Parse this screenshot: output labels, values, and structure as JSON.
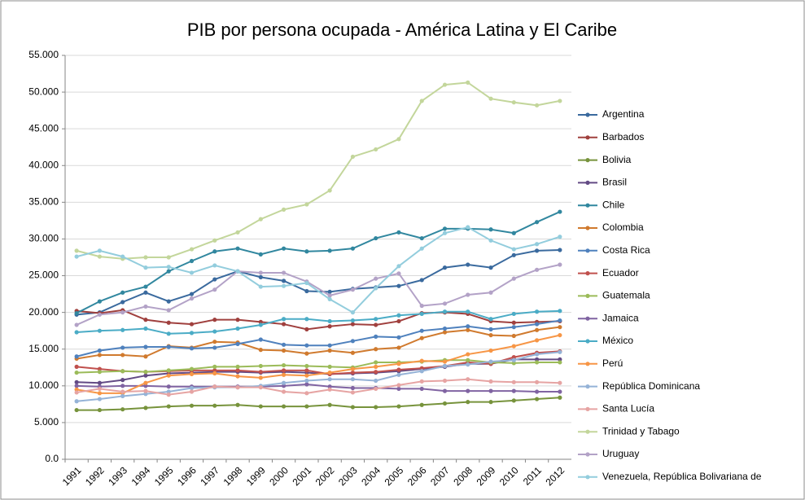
{
  "chart_data": {
    "type": "line",
    "title": "PIB por persona ocupada - América Latina y El Caribe",
    "categories": [
      "1991",
      "1992",
      "1993",
      "1994",
      "1995",
      "1996",
      "1997",
      "1998",
      "1999",
      "2000",
      "2001",
      "2002",
      "2003",
      "2004",
      "2005",
      "2006",
      "2007",
      "2008",
      "2009",
      "2010",
      "2011",
      "2012"
    ],
    "ylim": [
      0,
      55000
    ],
    "yticks": [
      {
        "value": 0,
        "label": "0.0"
      },
      {
        "value": 5000,
        "label": "5.000"
      },
      {
        "value": 10000,
        "label": "10.000"
      },
      {
        "value": 15000,
        "label": "15.000"
      },
      {
        "value": 20000,
        "label": "20.000"
      },
      {
        "value": 25000,
        "label": "25.000"
      },
      {
        "value": 30000,
        "label": "30.000"
      },
      {
        "value": 35000,
        "label": "35.000"
      },
      {
        "value": 40000,
        "label": "40.000"
      },
      {
        "value": 45000,
        "label": "45.000"
      },
      {
        "value": 50000,
        "label": "50.000"
      },
      {
        "value": 55000,
        "label": "55.000"
      }
    ],
    "grid": true,
    "legend": "right",
    "series": [
      {
        "name": "Argentina",
        "color": "#3A6A9E",
        "values": [
          19700,
          20000,
          21400,
          22700,
          21500,
          22500,
          24500,
          25600,
          24800,
          24300,
          22900,
          22800,
          23200,
          23400,
          23600,
          24400,
          26100,
          26500,
          26100,
          27800,
          28400,
          28500
        ]
      },
      {
        "name": "Barbados",
        "color": "#A0403E",
        "values": [
          20200,
          19900,
          20300,
          19000,
          18600,
          18400,
          19000,
          19000,
          18700,
          18400,
          17700,
          18100,
          18400,
          18300,
          18800,
          19900,
          20000,
          19800,
          18800,
          18600,
          18700,
          18800
        ]
      },
      {
        "name": "Bolivia",
        "color": "#77933C",
        "values": [
          6700,
          6700,
          6800,
          7000,
          7200,
          7300,
          7300,
          7400,
          7200,
          7200,
          7200,
          7400,
          7100,
          7100,
          7200,
          7400,
          7600,
          7800,
          7800,
          8000,
          8200,
          8400
        ]
      },
      {
        "name": "Brasil",
        "color": "#634B85",
        "values": [
          10500,
          10400,
          10800,
          11400,
          11700,
          11800,
          11900,
          11900,
          11800,
          11900,
          11800,
          11600,
          11700,
          11800,
          12000,
          12300,
          12600,
          13000,
          13000,
          13600,
          13600,
          13600
        ]
      },
      {
        "name": "Chile",
        "color": "#31879F",
        "values": [
          19900,
          21500,
          22700,
          23500,
          25600,
          27000,
          28300,
          28700,
          27900,
          28700,
          28300,
          28400,
          28700,
          30100,
          30900,
          30100,
          31400,
          31400,
          31300,
          30800,
          32300,
          33700
        ]
      },
      {
        "name": "Colombia",
        "color": "#D07A2E",
        "values": [
          13700,
          14200,
          14200,
          14000,
          15400,
          15200,
          16000,
          15900,
          14900,
          14800,
          14400,
          14800,
          14500,
          15000,
          15200,
          16500,
          17300,
          17600,
          16900,
          16800,
          17600,
          18000
        ]
      },
      {
        "name": "Costa Rica",
        "color": "#4F81BD",
        "values": [
          14000,
          14800,
          15200,
          15300,
          15300,
          15100,
          15200,
          15700,
          16300,
          15600,
          15500,
          15500,
          16100,
          16700,
          16600,
          17500,
          17800,
          18100,
          17700,
          18000,
          18400,
          18900
        ]
      },
      {
        "name": "Ecuador",
        "color": "#C0504D",
        "values": [
          12600,
          12300,
          12000,
          11900,
          12000,
          12100,
          12100,
          12100,
          11900,
          12100,
          12100,
          11600,
          11800,
          11900,
          12200,
          12400,
          12700,
          13200,
          13000,
          13900,
          14500,
          14700
        ]
      },
      {
        "name": "Guatemala",
        "color": "#9BBB59",
        "values": [
          11800,
          11900,
          12000,
          11900,
          12100,
          12300,
          12600,
          12600,
          12700,
          12800,
          12700,
          12600,
          12500,
          13200,
          13200,
          13300,
          13500,
          13500,
          13200,
          13100,
          13200,
          13200
        ]
      },
      {
        "name": "Jamaica",
        "color": "#8064A2",
        "values": [
          10000,
          9900,
          10000,
          10000,
          9900,
          9900,
          9900,
          9900,
          9900,
          10000,
          10200,
          9900,
          9700,
          9700,
          9600,
          9600,
          9300,
          9300,
          9300,
          9300,
          9200,
          9200
        ]
      },
      {
        "name": "México",
        "color": "#4BACC6",
        "values": [
          17300,
          17500,
          17600,
          17800,
          17100,
          17200,
          17400,
          17800,
          18300,
          19100,
          19100,
          18800,
          18900,
          19100,
          19600,
          19800,
          20100,
          20100,
          19100,
          19800,
          20100,
          20200
        ]
      },
      {
        "name": "Perú",
        "color": "#F79646",
        "values": [
          9500,
          9000,
          9000,
          10400,
          11400,
          11600,
          11700,
          11300,
          11100,
          11500,
          11400,
          11800,
          12300,
          12600,
          13000,
          13400,
          13300,
          14300,
          14800,
          15400,
          16200,
          16900
        ]
      },
      {
        "name": "República Dominicana",
        "color": "#95B3D7",
        "values": [
          7900,
          8200,
          8600,
          8900,
          9200,
          9700,
          9800,
          9800,
          10000,
          10400,
          10700,
          10900,
          10900,
          10700,
          11500,
          12000,
          12700,
          12900,
          13300,
          13500,
          14300,
          14600
        ]
      },
      {
        "name": "Santa Lucía",
        "color": "#E6A4A3",
        "values": [
          9100,
          9600,
          9200,
          9300,
          8800,
          9200,
          9900,
          9800,
          9800,
          9200,
          9000,
          9500,
          9100,
          9600,
          10100,
          10600,
          10700,
          10900,
          10600,
          10500,
          10500,
          10400
        ]
      },
      {
        "name": "Trinidad y Tabago",
        "color": "#C3D69B",
        "values": [
          28400,
          27600,
          27300,
          27500,
          27500,
          28600,
          29800,
          30900,
          32700,
          34000,
          34700,
          36600,
          41200,
          42200,
          43600,
          48800,
          51000,
          51300,
          49100,
          48600,
          48200,
          48800
        ]
      },
      {
        "name": "Uruguay",
        "color": "#B3A2C7",
        "values": [
          18300,
          19700,
          20000,
          20800,
          20300,
          21900,
          23100,
          25600,
          25400,
          25400,
          24200,
          22300,
          23100,
          24600,
          25300,
          20900,
          21200,
          22400,
          22700,
          24600,
          25800,
          26500
        ]
      },
      {
        "name": "Venezuela, República Bolivariana de",
        "color": "#93CDDD",
        "values": [
          27600,
          28400,
          27600,
          26100,
          26200,
          25400,
          26400,
          25600,
          23500,
          23600,
          24000,
          21800,
          20000,
          23300,
          26300,
          28700,
          30800,
          31600,
          29800,
          28600,
          29300,
          30300
        ]
      }
    ]
  }
}
